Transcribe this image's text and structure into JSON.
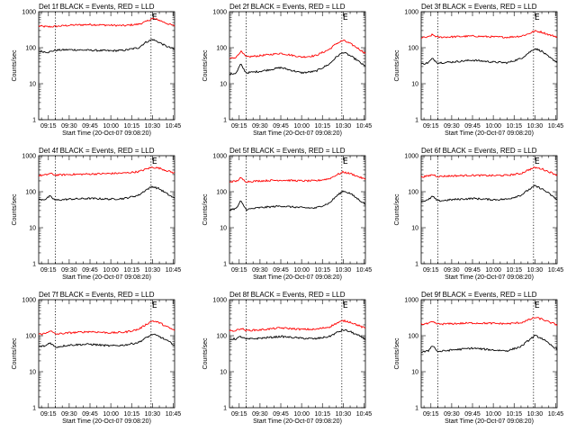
{
  "figure": {
    "xlabel": "Start Time (20-Oct-07 09:08:20)",
    "ylabel": "Counts/sec"
  },
  "chart_data": [
    {
      "type": "line",
      "title": "Det 1f BLACK = Events, RED = LLD",
      "xlabel": "Start Time (20-Oct-07 09:08:20)",
      "ylabel": "Counts/sec",
      "y_scale": "log",
      "ylim": [
        1,
        1000
      ],
      "xlim": [
        "09:08",
        "10:46"
      ],
      "x_ticks": [
        "09:15",
        "09:30",
        "09:45",
        "10:00",
        "10:15",
        "10:30",
        "10:45"
      ],
      "y_ticks": [
        "1",
        "10",
        "100",
        "1000"
      ],
      "markers": [
        {
          "x": "09:20",
          "label": ""
        },
        {
          "x": "10:29",
          "label": "E"
        }
      ],
      "grid": false,
      "x": [
        "09:08",
        "09:15",
        "09:20",
        "09:30",
        "09:45",
        "10:00",
        "10:10",
        "10:20",
        "10:25",
        "10:30",
        "10:35",
        "10:40",
        "10:46"
      ],
      "series": [
        {
          "color": "#ff0000",
          "values": [
            400,
            380,
            390,
            420,
            440,
            420,
            410,
            450,
            520,
            650,
            580,
            480,
            400
          ]
        },
        {
          "color": "#000000",
          "values": [
            80,
            75,
            85,
            88,
            85,
            82,
            85,
            100,
            140,
            170,
            140,
            110,
            90
          ]
        }
      ]
    },
    {
      "type": "line",
      "title": "Det 2f BLACK = Events, RED = LLD",
      "xlabel": "Start Time (20-Oct-07 09:08:20)",
      "ylabel": "Counts/sec",
      "y_scale": "log",
      "ylim": [
        1,
        1000
      ],
      "xlim": [
        "09:08",
        "10:46"
      ],
      "x_ticks": [
        "09:15",
        "09:30",
        "09:45",
        "10:00",
        "10:15",
        "10:30",
        "10:45"
      ],
      "y_ticks": [
        "1",
        "10",
        "100",
        "1000"
      ],
      "markers": [
        {
          "x": "09:20",
          "label": ""
        },
        {
          "x": "10:29",
          "label": "E"
        }
      ],
      "grid": false,
      "x": [
        "09:08",
        "09:13",
        "09:16",
        "09:20",
        "09:30",
        "09:45",
        "10:00",
        "10:10",
        "10:20",
        "10:25",
        "10:30",
        "10:35",
        "10:40",
        "10:46"
      ],
      "series": [
        {
          "color": "#ff0000",
          "values": [
            50,
            55,
            80,
            55,
            60,
            70,
            55,
            60,
            90,
            130,
            160,
            130,
            100,
            70
          ]
        },
        {
          "color": "#000000",
          "values": [
            18,
            20,
            35,
            20,
            22,
            28,
            20,
            22,
            35,
            55,
            75,
            60,
            45,
            30
          ]
        }
      ]
    },
    {
      "type": "line",
      "title": "Det 3f BLACK = Events, RED = LLD",
      "xlabel": "Start Time (20-Oct-07 09:08:20)",
      "ylabel": "Counts/sec",
      "y_scale": "log",
      "ylim": [
        1,
        1000
      ],
      "xlim": [
        "09:08",
        "10:46"
      ],
      "x_ticks": [
        "09:15",
        "09:30",
        "09:45",
        "10:00",
        "10:15",
        "10:30",
        "10:45"
      ],
      "y_ticks": [
        "1",
        "10",
        "100",
        "1000"
      ],
      "markers": [
        {
          "x": "09:20",
          "label": ""
        },
        {
          "x": "10:29",
          "label": "E"
        }
      ],
      "grid": false,
      "x": [
        "09:08",
        "09:13",
        "09:16",
        "09:20",
        "09:30",
        "09:45",
        "10:00",
        "10:10",
        "10:20",
        "10:25",
        "10:30",
        "10:35",
        "10:40",
        "10:46"
      ],
      "series": [
        {
          "color": "#ff0000",
          "values": [
            190,
            195,
            230,
            195,
            200,
            210,
            200,
            195,
            210,
            240,
            290,
            270,
            230,
            200
          ]
        },
        {
          "color": "#000000",
          "values": [
            35,
            38,
            50,
            38,
            40,
            45,
            40,
            38,
            50,
            70,
            95,
            80,
            55,
            40
          ]
        }
      ]
    },
    {
      "type": "line",
      "title": "Det 4f BLACK = Events, RED = LLD",
      "xlabel": "Start Time (20-Oct-07 09:08:20)",
      "ylabel": "Counts/sec",
      "y_scale": "log",
      "ylim": [
        1,
        1000
      ],
      "xlim": [
        "09:08",
        "10:46"
      ],
      "x_ticks": [
        "09:15",
        "09:30",
        "09:45",
        "10:00",
        "10:15",
        "10:30",
        "10:45"
      ],
      "y_ticks": [
        "1",
        "10",
        "100",
        "1000"
      ],
      "markers": [
        {
          "x": "09:20",
          "label": ""
        },
        {
          "x": "10:29",
          "label": "E"
        }
      ],
      "grid": false,
      "x": [
        "09:08",
        "09:13",
        "09:16",
        "09:20",
        "09:30",
        "09:45",
        "10:00",
        "10:10",
        "10:20",
        "10:25",
        "10:30",
        "10:35",
        "10:40",
        "10:46"
      ],
      "series": [
        {
          "color": "#ff0000",
          "values": [
            280,
            290,
            320,
            290,
            300,
            310,
            320,
            330,
            360,
            420,
            480,
            450,
            390,
            330
          ]
        },
        {
          "color": "#000000",
          "values": [
            60,
            62,
            75,
            58,
            62,
            65,
            62,
            65,
            80,
            110,
            140,
            120,
            90,
            65
          ]
        }
      ]
    },
    {
      "type": "line",
      "title": "Det 5f BLACK = Events, RED = LLD",
      "xlabel": "Start Time (20-Oct-07 09:08:20)",
      "ylabel": "Counts/sec",
      "y_scale": "log",
      "ylim": [
        1,
        1000
      ],
      "xlim": [
        "09:08",
        "10:46"
      ],
      "x_ticks": [
        "09:15",
        "09:30",
        "09:45",
        "10:00",
        "10:15",
        "10:30",
        "10:45"
      ],
      "y_ticks": [
        "1",
        "10",
        "100",
        "1000"
      ],
      "markers": [
        {
          "x": "09:20",
          "label": ""
        },
        {
          "x": "10:29",
          "label": "E"
        }
      ],
      "grid": false,
      "x": [
        "09:08",
        "09:13",
        "09:16",
        "09:20",
        "09:30",
        "09:45",
        "10:00",
        "10:10",
        "10:20",
        "10:25",
        "10:30",
        "10:35",
        "10:40",
        "10:46"
      ],
      "series": [
        {
          "color": "#ff0000",
          "values": [
            190,
            195,
            240,
            190,
            200,
            210,
            200,
            200,
            230,
            290,
            350,
            320,
            270,
            220
          ]
        },
        {
          "color": "#000000",
          "values": [
            32,
            34,
            55,
            32,
            36,
            40,
            36,
            35,
            48,
            75,
            105,
            90,
            65,
            45
          ]
        }
      ]
    },
    {
      "type": "line",
      "title": "Det 6f BLACK = Events, RED = LLD",
      "xlabel": "Start Time (20-Oct-07 09:08:20)",
      "ylabel": "Counts/sec",
      "y_scale": "log",
      "ylim": [
        1,
        1000
      ],
      "xlim": [
        "09:08",
        "10:46"
      ],
      "x_ticks": [
        "09:15",
        "09:30",
        "09:45",
        "10:00",
        "10:15",
        "10:30",
        "10:45"
      ],
      "y_ticks": [
        "1",
        "10",
        "100",
        "1000"
      ],
      "markers": [
        {
          "x": "09:20",
          "label": ""
        },
        {
          "x": "10:29",
          "label": "E"
        }
      ],
      "grid": false,
      "x": [
        "09:08",
        "09:13",
        "09:16",
        "09:20",
        "09:30",
        "09:45",
        "10:00",
        "10:10",
        "10:20",
        "10:25",
        "10:30",
        "10:35",
        "10:40",
        "10:46"
      ],
      "series": [
        {
          "color": "#ff0000",
          "values": [
            260,
            270,
            300,
            265,
            275,
            285,
            280,
            285,
            320,
            400,
            470,
            430,
            360,
            290
          ]
        },
        {
          "color": "#000000",
          "values": [
            55,
            58,
            75,
            55,
            60,
            65,
            60,
            62,
            80,
            110,
            145,
            120,
            90,
            60
          ]
        }
      ]
    },
    {
      "type": "line",
      "title": "Det 7f BLACK = Events, RED = LLD",
      "xlabel": "Start Time (20-Oct-07 09:08:20)",
      "ylabel": "Counts/sec",
      "y_scale": "log",
      "ylim": [
        1,
        1000
      ],
      "xlim": [
        "09:08",
        "10:46"
      ],
      "x_ticks": [
        "09:15",
        "09:30",
        "09:45",
        "10:00",
        "10:15",
        "10:30",
        "10:45"
      ],
      "y_ticks": [
        "1",
        "10",
        "100",
        "1000"
      ],
      "markers": [
        {
          "x": "09:20",
          "label": ""
        },
        {
          "x": "10:29",
          "label": "E"
        }
      ],
      "grid": false,
      "x": [
        "09:08",
        "09:13",
        "09:16",
        "09:20",
        "09:30",
        "09:45",
        "10:00",
        "10:10",
        "10:20",
        "10:25",
        "10:30",
        "10:35",
        "10:40",
        "10:46"
      ],
      "series": [
        {
          "color": "#ff0000",
          "values": [
            110,
            115,
            140,
            110,
            120,
            130,
            120,
            125,
            150,
            200,
            260,
            230,
            180,
            140
          ]
        },
        {
          "color": "#000000",
          "values": [
            50,
            52,
            65,
            48,
            55,
            58,
            52,
            55,
            65,
            85,
            110,
            95,
            75,
            55
          ]
        }
      ]
    },
    {
      "type": "line",
      "title": "Det 8f BLACK = Events, RED = LLD",
      "xlabel": "Start Time (20-Oct-07 09:08:20)",
      "ylabel": "Counts/sec",
      "y_scale": "log",
      "ylim": [
        1,
        1000
      ],
      "xlim": [
        "09:08",
        "10:46"
      ],
      "x_ticks": [
        "09:15",
        "09:30",
        "09:45",
        "10:00",
        "10:15",
        "10:30",
        "10:45"
      ],
      "y_ticks": [
        "1",
        "10",
        "100",
        "1000"
      ],
      "markers": [
        {
          "x": "09:20",
          "label": ""
        },
        {
          "x": "10:29",
          "label": "E"
        }
      ],
      "grid": false,
      "x": [
        "09:08",
        "09:13",
        "09:16",
        "09:20",
        "09:30",
        "09:45",
        "10:00",
        "10:10",
        "10:20",
        "10:25",
        "10:30",
        "10:35",
        "10:40",
        "10:46"
      ],
      "series": [
        {
          "color": "#ff0000",
          "values": [
            135,
            140,
            160,
            140,
            145,
            165,
            150,
            150,
            175,
            220,
            260,
            240,
            200,
            160
          ]
        },
        {
          "color": "#000000",
          "values": [
            80,
            82,
            95,
            80,
            85,
            95,
            85,
            82,
            95,
            120,
            145,
            130,
            105,
            80
          ]
        }
      ]
    },
    {
      "type": "line",
      "title": "Det 9f BLACK = Events, RED = LLD",
      "xlabel": "Start Time (20-Oct-07 09:08:20)",
      "ylabel": "Counts/sec",
      "y_scale": "log",
      "ylim": [
        1,
        1000
      ],
      "xlim": [
        "09:08",
        "10:46"
      ],
      "x_ticks": [
        "09:15",
        "09:30",
        "09:45",
        "10:00",
        "10:15",
        "10:30",
        "10:45"
      ],
      "y_ticks": [
        "1",
        "10",
        "100",
        "1000"
      ],
      "markers": [
        {
          "x": "09:20",
          "label": ""
        },
        {
          "x": "10:29",
          "label": "E"
        }
      ],
      "grid": false,
      "x": [
        "09:08",
        "09:13",
        "09:16",
        "09:20",
        "09:30",
        "09:45",
        "10:00",
        "10:10",
        "10:20",
        "10:25",
        "10:30",
        "10:35",
        "10:40",
        "10:46"
      ],
      "series": [
        {
          "color": "#ff0000",
          "values": [
            210,
            215,
            240,
            210,
            215,
            225,
            220,
            215,
            230,
            270,
            320,
            290,
            240,
            200
          ]
        },
        {
          "color": "#000000",
          "values": [
            35,
            37,
            55,
            36,
            40,
            45,
            40,
            38,
            50,
            72,
            100,
            85,
            60,
            42
          ]
        }
      ]
    }
  ]
}
